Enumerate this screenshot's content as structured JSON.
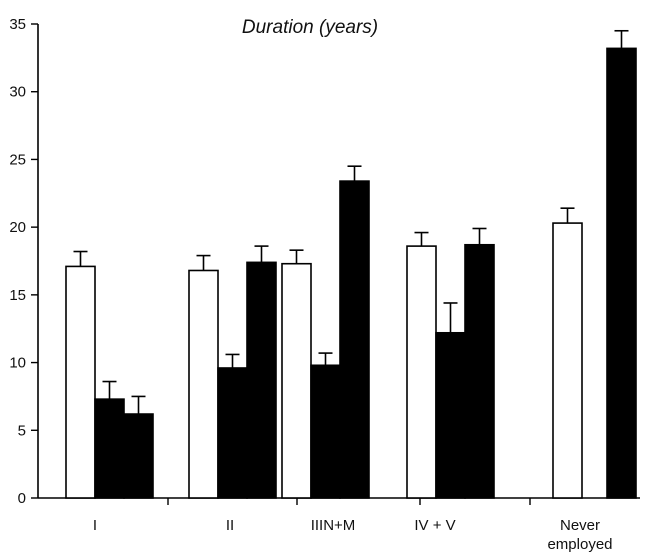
{
  "chart_data": {
    "type": "bar",
    "title": "Duration (years)",
    "xlabel": "",
    "ylabel": "",
    "ylim": [
      0,
      35
    ],
    "yticks": [
      0,
      5,
      10,
      15,
      20,
      25,
      30,
      35
    ],
    "grid": false,
    "categories": [
      {
        "label": "I",
        "bars": [
          {
            "fill": "white",
            "value": 17.1,
            "error": 1.1
          },
          {
            "fill": "black",
            "value": 7.3,
            "error": 1.3
          },
          {
            "fill": "black",
            "value": 6.2,
            "error": 1.3
          }
        ]
      },
      {
        "label": "II",
        "bars": [
          {
            "fill": "white",
            "value": 16.8,
            "error": 1.1
          },
          {
            "fill": "black",
            "value": 9.6,
            "error": 1.0
          },
          {
            "fill": "black",
            "value": 17.4,
            "error": 1.2
          }
        ]
      },
      {
        "label": "IIIN+M",
        "bars": [
          {
            "fill": "white",
            "value": 17.3,
            "error": 1.0
          },
          {
            "fill": "black",
            "value": 9.8,
            "error": 0.9
          },
          {
            "fill": "black",
            "value": 23.4,
            "error": 1.1
          }
        ]
      },
      {
        "label": "IV + V",
        "bars": [
          {
            "fill": "white",
            "value": 18.6,
            "error": 1.0
          },
          {
            "fill": "black",
            "value": 12.2,
            "error": 2.2
          },
          {
            "fill": "black",
            "value": 18.7,
            "error": 1.2
          }
        ]
      },
      {
        "label": "Never employed",
        "label_lines": [
          "Never",
          "employed"
        ],
        "bars": [
          {
            "fill": "white",
            "value": 20.3,
            "error": 1.1
          },
          {
            "fill": "black",
            "value": 33.2,
            "error": 1.3
          }
        ]
      }
    ]
  },
  "colors": {
    "white_bar": "#ffffff",
    "black_bar": "#000000",
    "axis": "#000000"
  }
}
